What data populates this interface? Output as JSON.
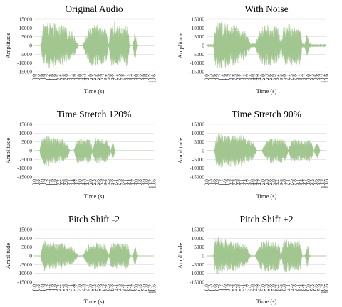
{
  "colors": {
    "wave": "#a2c690",
    "grid": "#d9d9d9"
  },
  "chart_data": [
    {
      "type": "area",
      "title": "Original Audio",
      "xlabel": "Time (s)",
      "ylabel": "Amplitude",
      "ylim": [
        -15000,
        15000
      ],
      "yticks": [
        "15000",
        "10000",
        "5000",
        "0",
        "-5000",
        "-10000",
        "-15000"
      ],
      "xticks": [
        "0.0",
        "0.3",
        "0.6",
        "0.9",
        "1.2",
        "1.6",
        "1.9",
        "2.2",
        "2.5",
        "2.8",
        "3.1",
        "3.4",
        "3.7",
        "4.0",
        "4.3",
        "4.7",
        "5.0",
        "5.3",
        "5.6",
        "5.9",
        "6.2",
        "6.5",
        "6.8",
        "7.1",
        "7.5",
        "7.8",
        "8.1",
        "8.4",
        "8.7",
        "9.0",
        "9.3",
        "9.6",
        "9.9",
        "10.2",
        "10.6"
      ],
      "xlim": [
        0,
        10.6
      ],
      "envelope": [
        [
          0.0,
          100
        ],
        [
          0.6,
          200
        ],
        [
          0.75,
          11000
        ],
        [
          0.95,
          13000
        ],
        [
          1.2,
          14000
        ],
        [
          1.5,
          12000
        ],
        [
          1.8,
          13000
        ],
        [
          2.1,
          10000
        ],
        [
          2.4,
          12000
        ],
        [
          2.7,
          11000
        ],
        [
          3.0,
          8000
        ],
        [
          3.3,
          9000
        ],
        [
          3.6,
          5000
        ],
        [
          3.9,
          300
        ],
        [
          4.3,
          300
        ],
        [
          4.8,
          10000
        ],
        [
          5.2,
          12000
        ],
        [
          5.5,
          12500
        ],
        [
          5.8,
          10000
        ],
        [
          6.1,
          11500
        ],
        [
          6.4,
          9000
        ],
        [
          6.6,
          400
        ],
        [
          6.8,
          11000
        ],
        [
          7.1,
          13500
        ],
        [
          7.4,
          12000
        ],
        [
          7.7,
          10000
        ],
        [
          8.0,
          11000
        ],
        [
          8.2,
          12000
        ],
        [
          8.35,
          9000
        ],
        [
          8.45,
          300
        ],
        [
          8.7,
          300
        ],
        [
          8.9,
          8000
        ],
        [
          9.0,
          7000
        ],
        [
          9.1,
          500
        ],
        [
          9.3,
          100
        ],
        [
          10.6,
          100
        ]
      ]
    },
    {
      "type": "area",
      "title": "With Noise",
      "xlabel": "Time (s)",
      "ylabel": "Amplitude",
      "ylim": [
        -15000,
        15000
      ],
      "yticks": [
        "15000",
        "10000",
        "5000",
        "0",
        "-5000",
        "-10000",
        "-15000"
      ],
      "xticks": [
        "0.0",
        "0.3",
        "0.6",
        "0.9",
        "1.2",
        "1.6",
        "1.9",
        "2.2",
        "2.5",
        "2.8",
        "3.1",
        "3.4",
        "3.7",
        "4.0",
        "4.3",
        "4.7",
        "5.0",
        "5.3",
        "5.6",
        "5.9",
        "6.2",
        "6.5",
        "6.8",
        "7.1",
        "7.5",
        "7.8",
        "8.1",
        "8.4",
        "8.7",
        "9.0",
        "9.3",
        "9.6",
        "9.9",
        "10.2",
        "10.6"
      ],
      "xlim": [
        0,
        10.6
      ],
      "envelope": [
        [
          0.0,
          700
        ],
        [
          0.6,
          800
        ],
        [
          0.75,
          11000
        ],
        [
          0.95,
          13000
        ],
        [
          1.2,
          14000
        ],
        [
          1.5,
          12000
        ],
        [
          1.8,
          13000
        ],
        [
          2.1,
          10500
        ],
        [
          2.4,
          12000
        ],
        [
          2.7,
          11000
        ],
        [
          3.0,
          8000
        ],
        [
          3.3,
          9000
        ],
        [
          3.6,
          5500
        ],
        [
          3.9,
          1200
        ],
        [
          4.3,
          1200
        ],
        [
          4.8,
          10000
        ],
        [
          5.2,
          12000
        ],
        [
          5.5,
          12500
        ],
        [
          5.8,
          10000
        ],
        [
          6.1,
          11500
        ],
        [
          6.4,
          9000
        ],
        [
          6.6,
          1300
        ],
        [
          6.8,
          11000
        ],
        [
          7.1,
          13500
        ],
        [
          7.4,
          12000
        ],
        [
          7.7,
          10000
        ],
        [
          8.0,
          11000
        ],
        [
          8.2,
          12000
        ],
        [
          8.35,
          9000
        ],
        [
          8.45,
          1200
        ],
        [
          8.7,
          1200
        ],
        [
          8.9,
          8000
        ],
        [
          9.0,
          7000
        ],
        [
          9.1,
          1300
        ],
        [
          9.3,
          800
        ],
        [
          10.6,
          800
        ]
      ]
    },
    {
      "type": "area",
      "title": "Time Stretch 120%",
      "xlabel": "Time (s)",
      "ylabel": "Amplitude",
      "ylim": [
        -15000,
        15000
      ],
      "yticks": [
        "15000",
        "10000",
        "5000",
        "0",
        "-5000",
        "-10000",
        "-15000"
      ],
      "xticks": [
        "0.0",
        "0.3",
        "0.6",
        "0.9",
        "1.2",
        "1.6",
        "1.9",
        "2.2",
        "2.5",
        "2.8",
        "3.1",
        "3.4",
        "3.7",
        "4.0",
        "4.3",
        "4.7",
        "5.0",
        "5.3",
        "5.6",
        "5.9",
        "6.2",
        "6.5",
        "6.8",
        "7.1",
        "7.5",
        "7.8",
        "8.1",
        "8.4",
        "8.7",
        "9.0",
        "9.3",
        "9.6",
        "9.9",
        "10.2",
        "10.6"
      ],
      "xlim": [
        0,
        10.6
      ],
      "envelope": [
        [
          0.0,
          100
        ],
        [
          0.5,
          200
        ],
        [
          0.62,
          7000
        ],
        [
          0.8,
          9500
        ],
        [
          1.0,
          8500
        ],
        [
          1.3,
          9000
        ],
        [
          1.6,
          7000
        ],
        [
          1.9,
          8000
        ],
        [
          2.2,
          6500
        ],
        [
          2.5,
          7000
        ],
        [
          2.8,
          5000
        ],
        [
          3.0,
          3500
        ],
        [
          3.15,
          300
        ],
        [
          3.5,
          300
        ],
        [
          3.8,
          7000
        ],
        [
          4.1,
          8000
        ],
        [
          4.4,
          6000
        ],
        [
          4.7,
          7500
        ],
        [
          5.0,
          6000
        ],
        [
          5.2,
          400
        ],
        [
          5.35,
          7500
        ],
        [
          5.6,
          8000
        ],
        [
          5.9,
          6500
        ],
        [
          6.2,
          7000
        ],
        [
          6.5,
          6000
        ],
        [
          6.7,
          3000
        ],
        [
          6.8,
          200
        ],
        [
          6.9,
          5000
        ],
        [
          7.05,
          4000
        ],
        [
          7.15,
          300
        ],
        [
          7.3,
          100
        ],
        [
          10.6,
          100
        ]
      ]
    },
    {
      "type": "area",
      "title": "Time Stretch 90%",
      "xlabel": "Time (s)",
      "ylabel": "Amplitude",
      "ylim": [
        -15000,
        15000
      ],
      "yticks": [
        "15000",
        "10000",
        "5000",
        "0",
        "-5000",
        "-10000",
        "-15000"
      ],
      "xticks": [
        "0.0",
        "0.3",
        "0.6",
        "0.9",
        "1.2",
        "1.6",
        "1.9",
        "2.2",
        "2.5",
        "2.8",
        "3.1",
        "3.4",
        "3.7",
        "4.0",
        "4.3",
        "4.7",
        "5.0",
        "5.3",
        "5.6",
        "5.9",
        "6.2",
        "6.5",
        "6.8",
        "7.1",
        "7.5",
        "7.8",
        "8.1",
        "8.4",
        "8.7",
        "9.0",
        "9.3",
        "9.6",
        "9.9",
        "10.2",
        "10.6"
      ],
      "xlim": [
        0,
        10.6
      ],
      "envelope": [
        [
          0.0,
          100
        ],
        [
          0.7,
          200
        ],
        [
          0.85,
          8000
        ],
        [
          1.1,
          10000
        ],
        [
          1.5,
          9500
        ],
        [
          1.9,
          8500
        ],
        [
          2.3,
          10000
        ],
        [
          2.7,
          8000
        ],
        [
          3.1,
          9000
        ],
        [
          3.5,
          6500
        ],
        [
          3.9,
          6000
        ],
        [
          4.2,
          4500
        ],
        [
          4.45,
          300
        ],
        [
          4.9,
          300
        ],
        [
          5.3,
          6500
        ],
        [
          5.8,
          7500
        ],
        [
          6.2,
          6500
        ],
        [
          6.6,
          7000
        ],
        [
          7.0,
          5500
        ],
        [
          7.25,
          500
        ],
        [
          7.45,
          6000
        ],
        [
          7.9,
          6500
        ],
        [
          8.3,
          6000
        ],
        [
          8.7,
          5500
        ],
        [
          9.1,
          6500
        ],
        [
          9.35,
          4500
        ],
        [
          9.5,
          200
        ],
        [
          9.7,
          5000
        ],
        [
          9.9,
          4000
        ],
        [
          10.05,
          300
        ],
        [
          10.3,
          100
        ],
        [
          10.6,
          100
        ]
      ]
    },
    {
      "type": "area",
      "title": "Pitch Shift -2",
      "xlabel": "Time (s)",
      "ylabel": "Amplitude",
      "ylim": [
        -15000,
        15000
      ],
      "yticks": [
        "15000",
        "10000",
        "5000",
        "0",
        "-5000",
        "-10000",
        "-15000"
      ],
      "xticks": [
        "0.0",
        "0.3",
        "0.6",
        "0.9",
        "1.2",
        "1.6",
        "1.9",
        "2.2",
        "2.5",
        "2.8",
        "3.1",
        "3.4",
        "3.7",
        "4.0",
        "4.3",
        "4.7",
        "5.0",
        "5.3",
        "5.6",
        "5.9",
        "6.2",
        "6.5",
        "6.8",
        "7.1",
        "7.5",
        "7.8",
        "8.1",
        "8.4",
        "8.7",
        "9.0",
        "9.3",
        "9.6",
        "9.9",
        "10.2",
        "10.6"
      ],
      "xlim": [
        0,
        10.6
      ],
      "envelope": [
        [
          0.0,
          100
        ],
        [
          0.6,
          200
        ],
        [
          0.75,
          7500
        ],
        [
          0.95,
          9000
        ],
        [
          1.2,
          8500
        ],
        [
          1.5,
          7000
        ],
        [
          1.8,
          8000
        ],
        [
          2.1,
          6500
        ],
        [
          2.4,
          7500
        ],
        [
          2.7,
          6500
        ],
        [
          3.0,
          5000
        ],
        [
          3.3,
          5500
        ],
        [
          3.6,
          3500
        ],
        [
          3.9,
          300
        ],
        [
          4.3,
          300
        ],
        [
          4.8,
          6500
        ],
        [
          5.2,
          7500
        ],
        [
          5.5,
          8000
        ],
        [
          5.8,
          6500
        ],
        [
          6.1,
          7000
        ],
        [
          6.4,
          6000
        ],
        [
          6.6,
          400
        ],
        [
          6.8,
          7000
        ],
        [
          7.1,
          8000
        ],
        [
          7.4,
          7500
        ],
        [
          7.7,
          6500
        ],
        [
          8.0,
          7000
        ],
        [
          8.2,
          7500
        ],
        [
          8.35,
          6000
        ],
        [
          8.45,
          300
        ],
        [
          8.7,
          300
        ],
        [
          8.9,
          5500
        ],
        [
          9.0,
          4500
        ],
        [
          9.1,
          400
        ],
        [
          9.3,
          100
        ],
        [
          10.6,
          100
        ]
      ]
    },
    {
      "type": "area",
      "title": "Pitch Shift +2",
      "xlabel": "Time (s)",
      "ylabel": "Amplitude",
      "ylim": [
        -15000,
        15000
      ],
      "yticks": [
        "15000",
        "10000",
        "5000",
        "0",
        "-5000",
        "-10000",
        "-15000"
      ],
      "xticks": [
        "0.0",
        "0.3",
        "0.6",
        "0.9",
        "1.2",
        "1.6",
        "1.9",
        "2.2",
        "2.5",
        "2.8",
        "3.1",
        "3.4",
        "3.7",
        "4.0",
        "4.3",
        "4.7",
        "5.0",
        "5.3",
        "5.6",
        "5.9",
        "6.2",
        "6.5",
        "6.8",
        "7.1",
        "7.5",
        "7.8",
        "8.1",
        "8.4",
        "8.7",
        "9.0",
        "9.3",
        "9.6",
        "9.9",
        "10.2",
        "10.6"
      ],
      "xlim": [
        0,
        10.6
      ],
      "envelope": [
        [
          0.0,
          100
        ],
        [
          0.6,
          200
        ],
        [
          0.75,
          9000
        ],
        [
          0.95,
          11500
        ],
        [
          1.2,
          10500
        ],
        [
          1.5,
          9000
        ],
        [
          1.8,
          10000
        ],
        [
          2.1,
          8000
        ],
        [
          2.4,
          9000
        ],
        [
          2.7,
          8500
        ],
        [
          3.0,
          6500
        ],
        [
          3.3,
          7000
        ],
        [
          3.6,
          4500
        ],
        [
          3.9,
          300
        ],
        [
          4.3,
          300
        ],
        [
          4.8,
          8000
        ],
        [
          5.2,
          9000
        ],
        [
          5.5,
          9500
        ],
        [
          5.8,
          8000
        ],
        [
          6.1,
          9000
        ],
        [
          6.4,
          7500
        ],
        [
          6.6,
          400
        ],
        [
          6.8,
          8500
        ],
        [
          7.1,
          10000
        ],
        [
          7.4,
          9000
        ],
        [
          7.7,
          8000
        ],
        [
          8.0,
          8500
        ],
        [
          8.2,
          9000
        ],
        [
          8.35,
          7000
        ],
        [
          8.45,
          300
        ],
        [
          8.7,
          300
        ],
        [
          8.9,
          6500
        ],
        [
          9.0,
          5500
        ],
        [
          9.1,
          400
        ],
        [
          9.3,
          100
        ],
        [
          10.6,
          100
        ]
      ]
    }
  ]
}
